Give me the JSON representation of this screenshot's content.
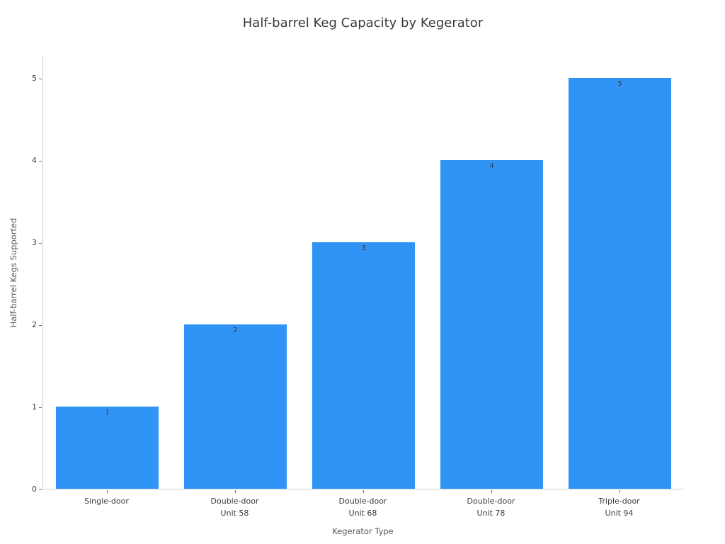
{
  "chart_data": {
    "type": "bar",
    "title": "Half-barrel Keg Capacity by Kegerator",
    "xlabel": "Kegerator Type",
    "ylabel": "Half-barrel Kegs Supported",
    "categories": [
      [
        "Single-door"
      ],
      [
        "Double-door",
        "Unit 58"
      ],
      [
        "Double-door",
        "Unit 68"
      ],
      [
        "Double-door",
        "Unit 78"
      ],
      [
        "Triple-door",
        "Unit 94"
      ]
    ],
    "values": [
      1,
      2,
      3,
      4,
      5
    ],
    "bar_value_labels": [
      "1",
      "2",
      "3",
      "4",
      "5"
    ],
    "yticks": [
      0,
      1,
      2,
      3,
      4,
      5
    ],
    "ylim": [
      0,
      5.27
    ],
    "grid": false,
    "legend": null,
    "bar_color": "#2f94f5",
    "spine_color": "#cccccc",
    "title_color": "#3a3a3a",
    "tick_label_color": "#3d3d3d",
    "axis_title_color": "#585858"
  }
}
